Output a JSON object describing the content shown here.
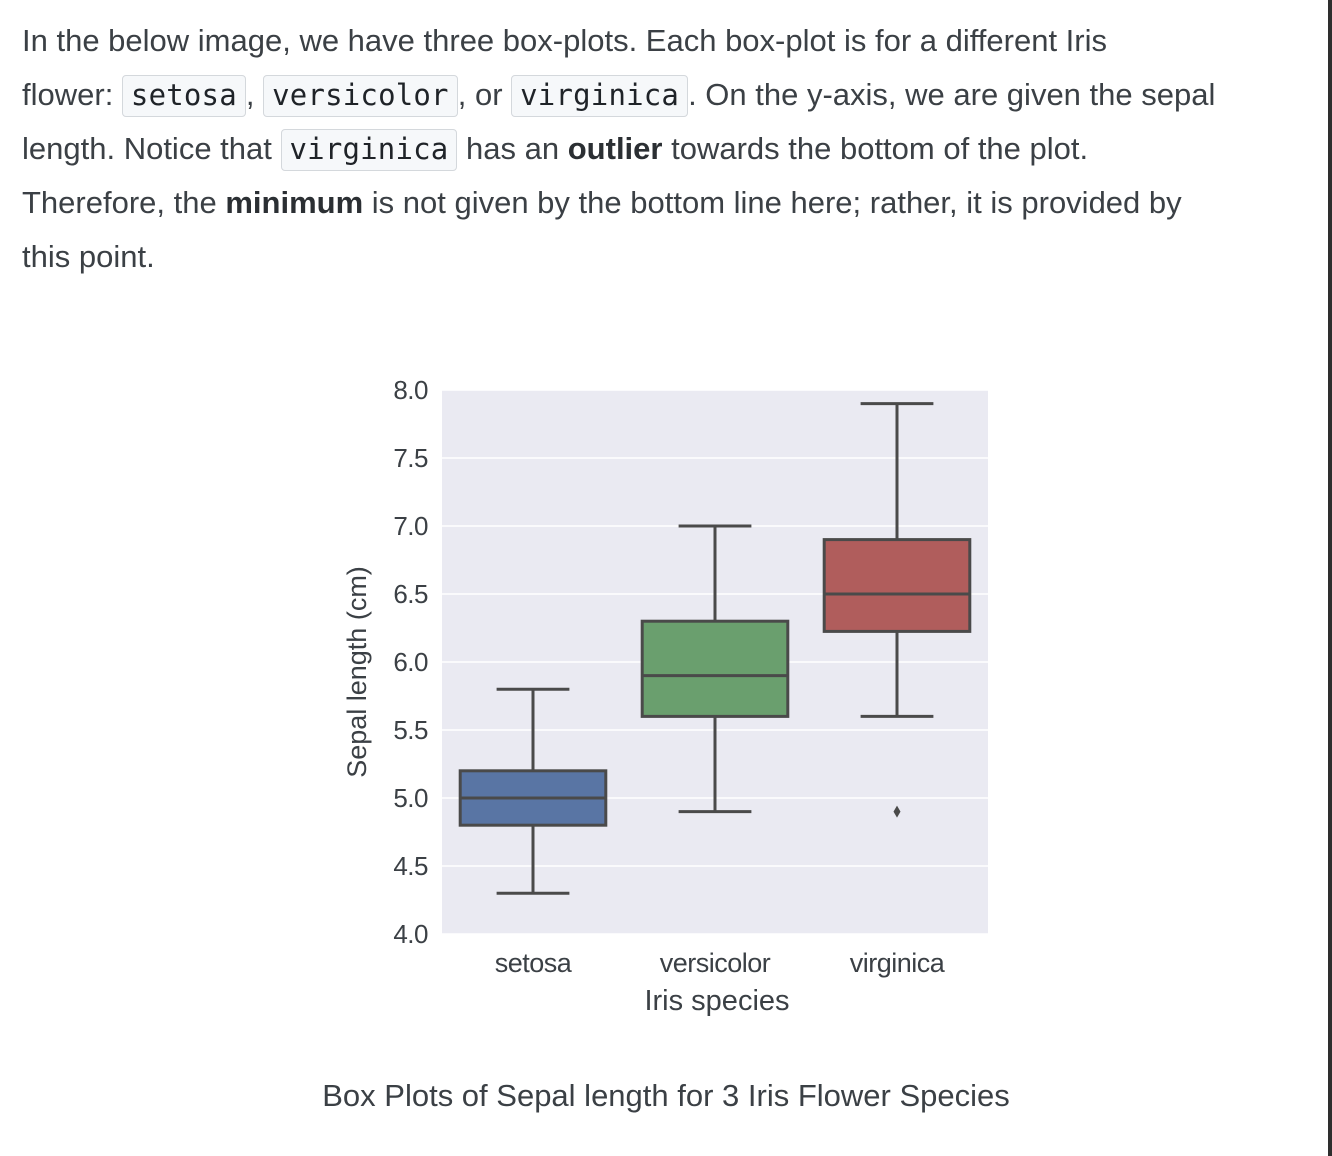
{
  "prose": {
    "line1": "In the below image, we have three box-plots. Each box-plot is for a different Iris",
    "line2_prefix": "flower: ",
    "code_setosa": "setosa",
    "comma1": ", ",
    "code_versicolor": "versicolor",
    "or_text": ", or ",
    "code_virginica": "virginica",
    "line2_suffix": ". On the y-axis, we are given the sepal",
    "line3_prefix": "length. Notice that ",
    "code_virginica2": "virginica",
    "line3_mid": " has an ",
    "bold_outlier": "outlier",
    "line3_suffix": " towards the bottom of the plot.",
    "line4_prefix": "Therefore, the ",
    "bold_minimum": "minimum",
    "line4_suffix": " is not given by the bottom line here; rather, it is provided by",
    "line5": "this point."
  },
  "caption": "Box Plots of Sepal length for 3 Iris Flower Species",
  "chart_data": {
    "type": "box",
    "xlabel": "Iris species",
    "ylabel": "Sepal length (cm)",
    "ylim": [
      4.0,
      8.0
    ],
    "yticks": [
      "4.0",
      "4.5",
      "5.0",
      "5.5",
      "6.0",
      "6.5",
      "7.0",
      "7.5",
      "8.0"
    ],
    "grid": true,
    "categories": [
      "setosa",
      "versicolor",
      "virginica"
    ],
    "boxes": [
      {
        "name": "setosa",
        "whislo": 4.3,
        "q1": 4.8,
        "med": 5.0,
        "q3": 5.2,
        "whishi": 5.8,
        "fliers": [],
        "color": "#5975a4"
      },
      {
        "name": "versicolor",
        "whislo": 4.9,
        "q1": 5.6,
        "med": 5.9,
        "q3": 6.3,
        "whishi": 7.0,
        "fliers": [],
        "color": "#6a9f6e"
      },
      {
        "name": "virginica",
        "whislo": 5.6,
        "q1": 6.225,
        "med": 6.5,
        "q3": 6.9,
        "whishi": 7.9,
        "fliers": [
          4.9
        ],
        "color": "#b05d5c"
      }
    ]
  },
  "colors": {
    "plot_bg": "#eaeaf2",
    "grid": "#ffffff",
    "box_line": "#4a4a4a",
    "text": "#3b4045",
    "code_bg": "#f6f8fa",
    "code_border": "#d4d8dc"
  }
}
